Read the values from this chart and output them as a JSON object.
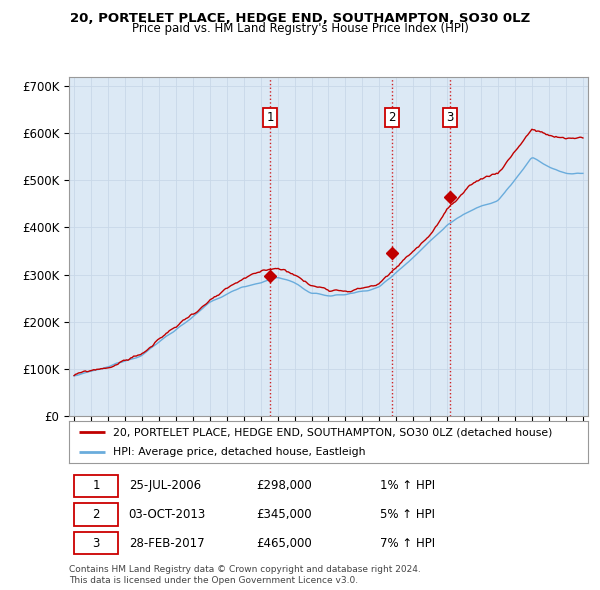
{
  "title": "20, PORTELET PLACE, HEDGE END, SOUTHAMPTON, SO30 0LZ",
  "subtitle": "Price paid vs. HM Land Registry's House Price Index (HPI)",
  "ylim": [
    0,
    720000
  ],
  "yticks": [
    0,
    100000,
    200000,
    300000,
    400000,
    500000,
    600000,
    700000
  ],
  "ytick_labels": [
    "£0",
    "£100K",
    "£200K",
    "£300K",
    "£400K",
    "£500K",
    "£600K",
    "£700K"
  ],
  "xlim_start": 1994.7,
  "xlim_end": 2025.3,
  "hpi_color": "#6aacdc",
  "price_color": "#c00000",
  "chart_bg": "#dce9f5",
  "sale_points": [
    {
      "date": 2006.556,
      "price": 298000,
      "label": "1"
    },
    {
      "date": 2013.747,
      "price": 345000,
      "label": "2"
    },
    {
      "date": 2017.162,
      "price": 465000,
      "label": "3"
    }
  ],
  "vline_color": "#cc0000",
  "legend_entries": [
    "20, PORTELET PLACE, HEDGE END, SOUTHAMPTON, SO30 0LZ (detached house)",
    "HPI: Average price, detached house, Eastleigh"
  ],
  "table_data": [
    [
      "1",
      "25-JUL-2006",
      "£298,000",
      "1% ↑ HPI"
    ],
    [
      "2",
      "03-OCT-2013",
      "£345,000",
      "5% ↑ HPI"
    ],
    [
      "3",
      "28-FEB-2017",
      "£465,000",
      "7% ↑ HPI"
    ]
  ],
  "footer": "Contains HM Land Registry data © Crown copyright and database right 2024.\nThis data is licensed under the Open Government Licence v3.0.",
  "background_color": "#ffffff",
  "grid_color": "#c8d8e8",
  "hpi_seed": 12345,
  "price_seed": 99
}
